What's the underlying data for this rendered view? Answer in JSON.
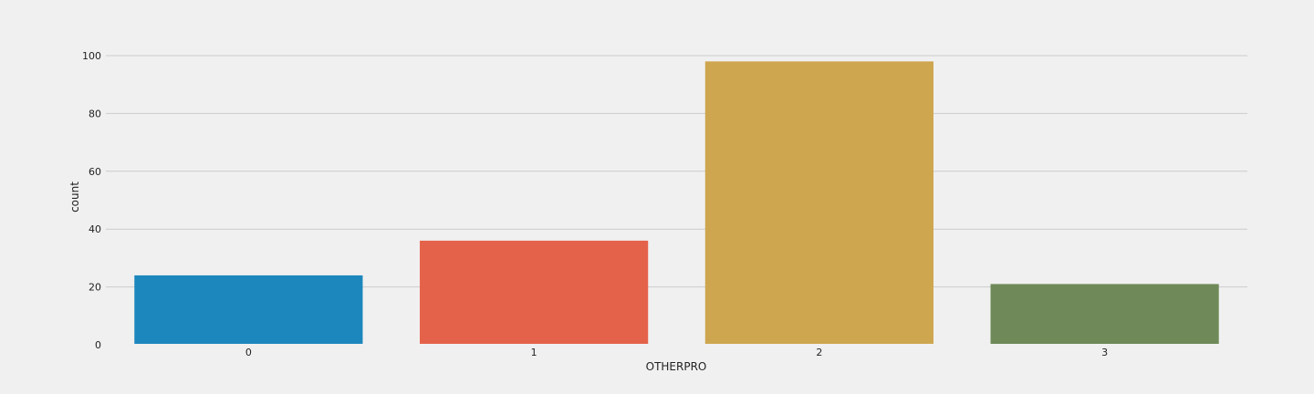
{
  "chart_data": {
    "type": "bar",
    "xlabel": "OTHERPRO",
    "ylabel": "count",
    "categories": [
      "0",
      "1",
      "2",
      "3"
    ],
    "values": [
      24,
      36,
      98,
      21
    ],
    "colors": [
      "#1c87bd",
      "#e5624a",
      "#cea64f",
      "#6f8a58"
    ],
    "yticks": [
      0,
      20,
      40,
      60,
      80,
      100
    ],
    "ylim": [
      0,
      110
    ],
    "grid": "horizontal",
    "background": "#f0f0f0",
    "grid_color": "#cbcbcb"
  }
}
